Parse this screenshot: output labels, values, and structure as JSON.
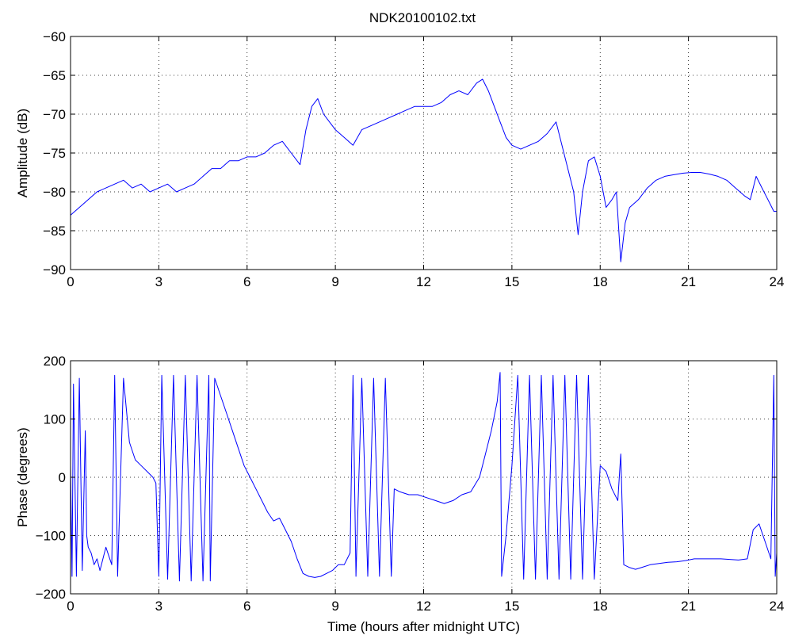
{
  "figure": {
    "title": "NDK20100102.txt"
  },
  "chart_data": [
    {
      "type": "line",
      "title": "NDK20100102.txt",
      "xlabel": "",
      "ylabel": "Amplitude (dB)",
      "xlim": [
        0,
        24
      ],
      "ylim": [
        -90,
        -60
      ],
      "xticks": [
        0,
        3,
        6,
        9,
        12,
        15,
        18,
        21,
        24
      ],
      "yticks": [
        -90,
        -85,
        -80,
        -75,
        -70,
        -65,
        -60
      ],
      "grid": true,
      "line_color": "#0000ff",
      "series": [
        {
          "x": [
            0,
            0.3,
            0.6,
            0.9,
            1.2,
            1.5,
            1.8,
            2.1,
            2.4,
            2.7,
            3.0,
            3.3,
            3.6,
            3.9,
            4.2,
            4.5,
            4.8,
            5.1,
            5.4,
            5.7,
            6.0,
            6.3,
            6.6,
            6.9,
            7.2,
            7.5,
            7.8,
            8.0,
            8.2,
            8.4,
            8.6,
            8.8,
            9.0,
            9.3,
            9.6,
            9.9,
            10.2,
            10.5,
            10.8,
            11.1,
            11.4,
            11.7,
            12.0,
            12.3,
            12.6,
            12.9,
            13.2,
            13.5,
            13.8,
            14.0,
            14.2,
            14.4,
            14.6,
            14.8,
            15.0,
            15.3,
            15.6,
            15.9,
            16.2,
            16.5,
            16.7,
            16.9,
            17.1,
            17.25,
            17.4,
            17.6,
            17.8,
            18.0,
            18.2,
            18.4,
            18.55,
            18.7,
            18.85,
            19.0,
            19.3,
            19.6,
            19.9,
            20.2,
            20.5,
            20.8,
            21.1,
            21.4,
            21.7,
            22.0,
            22.3,
            22.6,
            22.9,
            23.1,
            23.3,
            23.5,
            23.7,
            23.9,
            24.0
          ],
          "y": [
            -83,
            -82,
            -81,
            -80,
            -79.5,
            -79,
            -78.5,
            -79.5,
            -79,
            -80,
            -79.5,
            -79,
            -80,
            -79.5,
            -79,
            -78,
            -77,
            -77,
            -76,
            -76,
            -75.5,
            -75.5,
            -75,
            -74,
            -73.5,
            -75,
            -76.5,
            -72,
            -69,
            -68,
            -70,
            -71,
            -72,
            -73,
            -74,
            -72,
            -71.5,
            -71,
            -70.5,
            -70,
            -69.5,
            -69,
            -69,
            -69,
            -68.5,
            -67.5,
            -67,
            -67.5,
            -66,
            -65.5,
            -67,
            -69,
            -71,
            -73,
            -74,
            -74.5,
            -74,
            -73.5,
            -72.5,
            -71,
            -74,
            -77,
            -80,
            -85.5,
            -80,
            -76,
            -75.5,
            -78,
            -82,
            -81,
            -80,
            -89,
            -84,
            -82,
            -81,
            -79.5,
            -78.5,
            -78,
            -77.8,
            -77.6,
            -77.5,
            -77.5,
            -77.7,
            -78,
            -78.5,
            -79.5,
            -80.5,
            -81,
            -78,
            -79.5,
            -81,
            -82.5,
            -82.5
          ]
        }
      ]
    },
    {
      "type": "line",
      "title": "",
      "xlabel": "Time (hours after midnight UTC)",
      "ylabel": "Phase (degrees)",
      "xlim": [
        0,
        24
      ],
      "ylim": [
        -200,
        200
      ],
      "xticks": [
        0,
        3,
        6,
        9,
        12,
        15,
        18,
        21,
        24
      ],
      "yticks": [
        -200,
        -100,
        0,
        100,
        200
      ],
      "grid": true,
      "line_color": "#0000ff",
      "series": [
        {
          "x": [
            0,
            0.05,
            0.1,
            0.2,
            0.3,
            0.4,
            0.5,
            0.55,
            0.6,
            0.7,
            0.8,
            0.9,
            1.0,
            1.2,
            1.4,
            1.5,
            1.6,
            1.8,
            2.0,
            2.2,
            2.4,
            2.6,
            2.8,
            2.9,
            3.0,
            3.1,
            3.3,
            3.5,
            3.7,
            3.9,
            4.1,
            4.3,
            4.5,
            4.7,
            4.75,
            4.9,
            5.1,
            5.3,
            5.5,
            5.7,
            5.9,
            6.1,
            6.3,
            6.5,
            6.7,
            6.9,
            7.1,
            7.3,
            7.5,
            7.7,
            7.9,
            8.1,
            8.3,
            8.5,
            8.7,
            8.9,
            9.1,
            9.3,
            9.5,
            9.6,
            9.7,
            9.9,
            10.1,
            10.3,
            10.5,
            10.7,
            10.9,
            11.0,
            11.2,
            11.5,
            11.8,
            12.1,
            12.4,
            12.7,
            13.0,
            13.3,
            13.6,
            13.9,
            14.1,
            14.3,
            14.5,
            14.6,
            14.65,
            14.8,
            15.0,
            15.2,
            15.4,
            15.6,
            15.8,
            16.0,
            16.2,
            16.4,
            16.6,
            16.8,
            17.0,
            17.2,
            17.4,
            17.6,
            17.8,
            18.0,
            18.2,
            18.4,
            18.6,
            18.7,
            18.8,
            19.0,
            19.2,
            19.4,
            19.7,
            20.0,
            20.3,
            20.6,
            20.9,
            21.2,
            21.5,
            21.8,
            22.1,
            22.4,
            22.7,
            23.0,
            23.2,
            23.4,
            23.6,
            23.8,
            23.9,
            23.95,
            24.0
          ],
          "y": [
            20,
            -170,
            160,
            -170,
            170,
            -160,
            80,
            -100,
            -120,
            -130,
            -150,
            -140,
            -160,
            -120,
            -150,
            175,
            -170,
            170,
            60,
            30,
            20,
            10,
            0,
            -10,
            -170,
            175,
            -175,
            175,
            -178,
            175,
            -178,
            175,
            -178,
            175,
            -178,
            170,
            140,
            110,
            80,
            50,
            20,
            0,
            -20,
            -40,
            -60,
            -75,
            -70,
            -90,
            -110,
            -140,
            -165,
            -170,
            -172,
            -170,
            -165,
            -160,
            -150,
            -150,
            -130,
            175,
            -170,
            170,
            -170,
            170,
            -170,
            170,
            -170,
            -20,
            -25,
            -30,
            -30,
            -35,
            -40,
            -45,
            -40,
            -30,
            -25,
            0,
            40,
            80,
            130,
            180,
            -170,
            -100,
            20,
            175,
            -175,
            175,
            -175,
            175,
            -175,
            175,
            -175,
            175,
            -175,
            175,
            -175,
            175,
            -175,
            20,
            10,
            -20,
            -40,
            40,
            -150,
            -155,
            -158,
            -155,
            -150,
            -148,
            -146,
            -145,
            -143,
            -140,
            -140,
            -140,
            -140,
            -141,
            -142,
            -140,
            -90,
            -80,
            -110,
            -140,
            175,
            -170,
            -130
          ]
        }
      ]
    }
  ]
}
